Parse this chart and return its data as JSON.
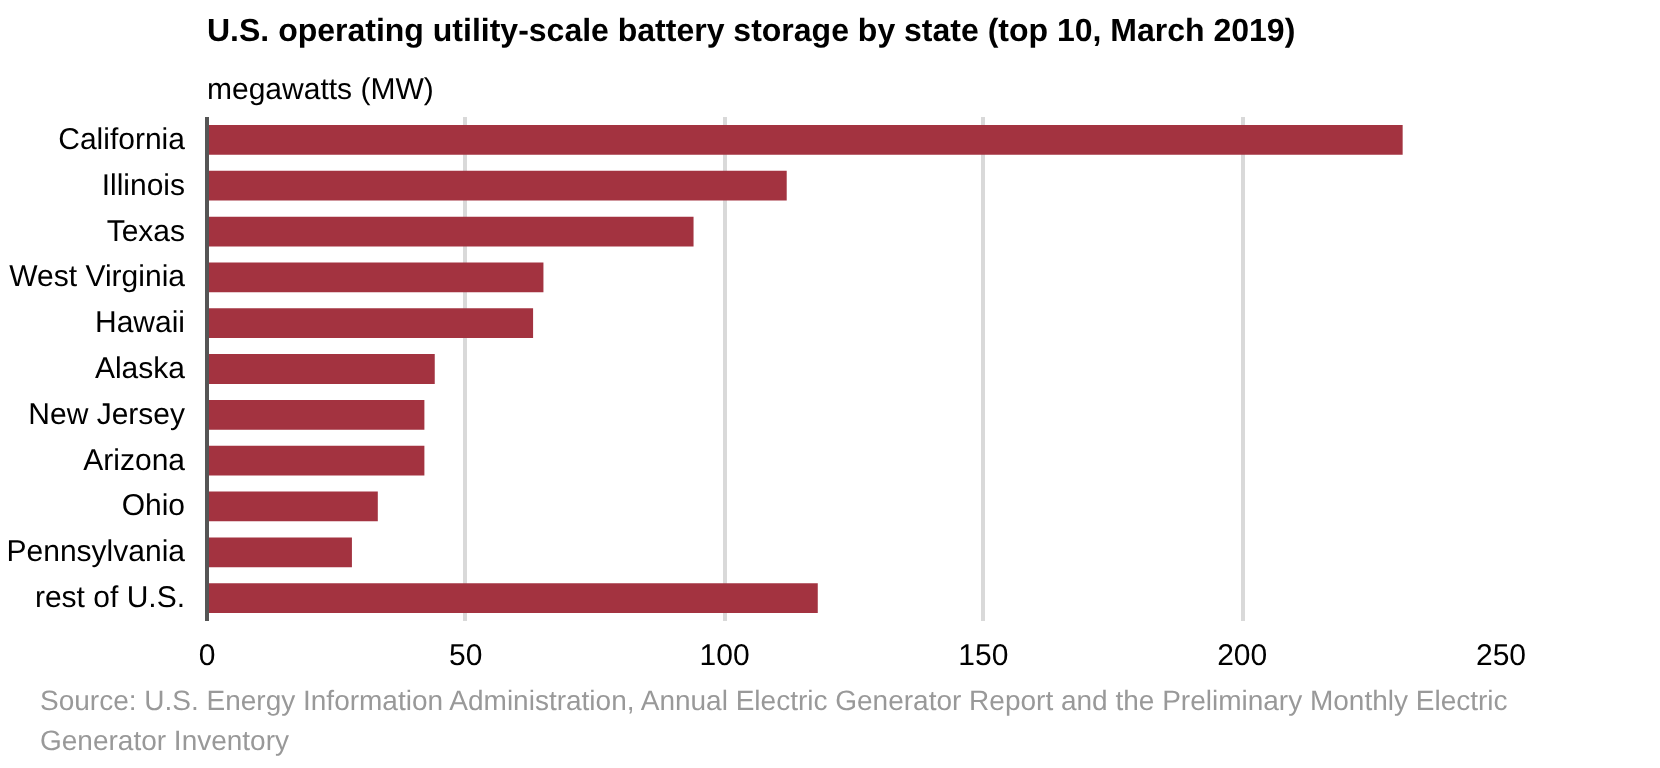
{
  "chart_data": {
    "type": "bar",
    "orientation": "horizontal",
    "title": "U.S. operating utility-scale battery storage by state (top 10, March 2019)",
    "subtitle": "megawatts (MW)",
    "categories": [
      "California",
      "Illinois",
      "Texas",
      "West Virginia",
      "Hawaii",
      "Alaska",
      "New Jersey",
      "Arizona",
      "Ohio",
      "Pennsylvania",
      "rest of U.S."
    ],
    "values": [
      231,
      112,
      94,
      65,
      63,
      44,
      42,
      42,
      33,
      28,
      118
    ],
    "color": "#a33340",
    "xlim": [
      0,
      250
    ],
    "xticks": [
      0,
      50,
      100,
      150,
      200,
      250
    ],
    "grid": "x",
    "annotations": [
      "Source: U.S. Energy Information Administration, Annual Electric Generator Report and the Preliminary Monthly Electric Generator Inventory"
    ]
  }
}
